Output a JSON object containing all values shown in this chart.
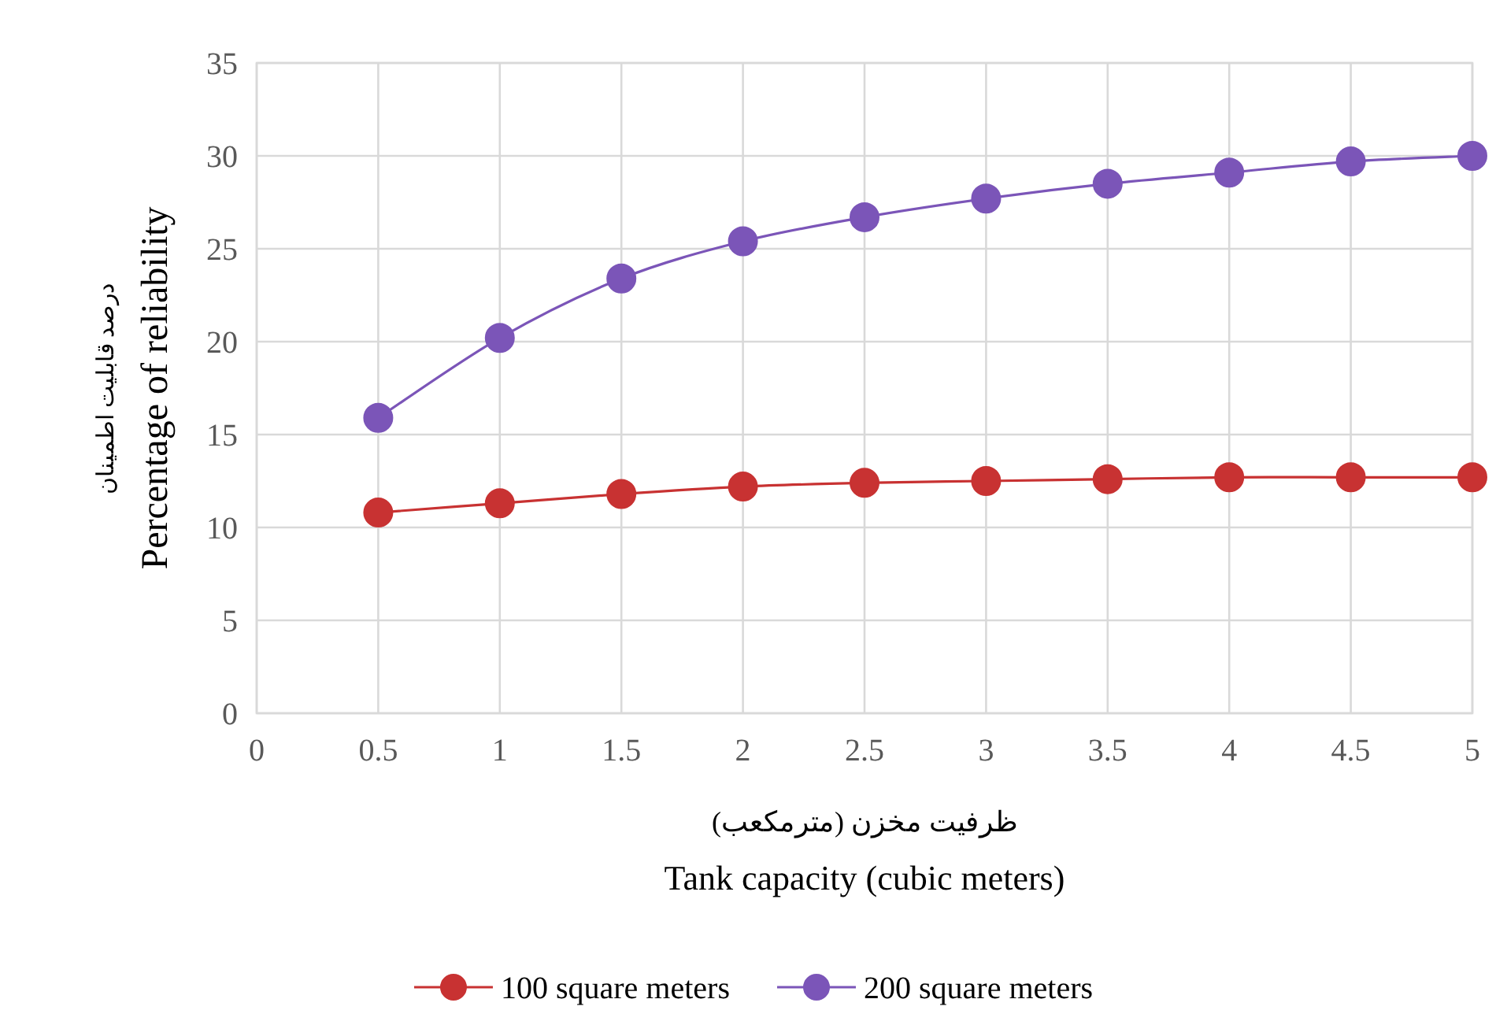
{
  "chart_data": {
    "type": "line",
    "xlabel": "Tank capacity (cubic meters)",
    "ylabel": "Percentage of reliability",
    "annotations": [
      "ظرفیت مخزن (مترمکعب)",
      "درصد قابلیت اطمینان"
    ],
    "x": [
      0.5,
      1,
      1.5,
      2,
      2.5,
      3,
      3.5,
      4,
      4.5,
      5
    ],
    "series": [
      {
        "name": "100 square meters",
        "color": "#c83232",
        "values": [
          10.8,
          11.3,
          11.8,
          12.2,
          12.4,
          12.5,
          12.6,
          12.7,
          12.7,
          12.7
        ]
      },
      {
        "name": "200 square meters",
        "color": "#7b55b8",
        "values": [
          15.9,
          20.2,
          23.4,
          25.4,
          26.7,
          27.7,
          28.5,
          29.1,
          29.7,
          30.0
        ]
      }
    ],
    "xlim": [
      0,
      5
    ],
    "xticks": [
      0,
      0.5,
      1,
      1.5,
      2,
      2.5,
      3,
      3.5,
      4,
      4.5,
      5
    ],
    "ylim": [
      0,
      35
    ],
    "yticks": [
      0,
      5,
      10,
      15,
      20,
      25,
      30,
      35
    ],
    "grid": true,
    "legend": "bottom",
    "marker": "circle",
    "line_style": "solid"
  }
}
